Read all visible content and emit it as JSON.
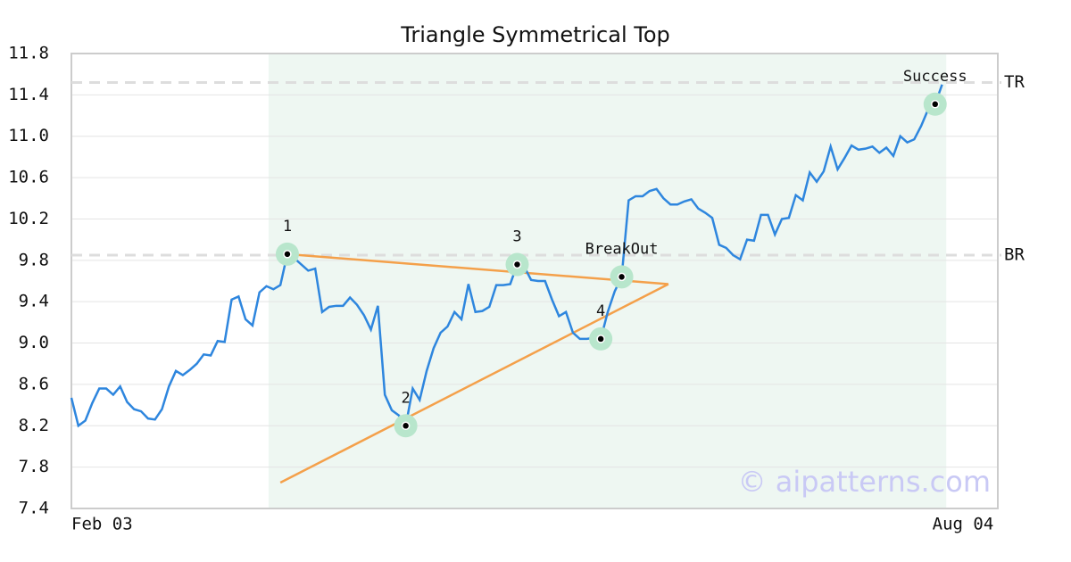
{
  "chart_data": {
    "type": "line",
    "title": "Triangle Symmetrical Top",
    "color": "#2e86de",
    "values": [
      8.47,
      8.2,
      8.25,
      8.42,
      8.56,
      8.56,
      8.5,
      8.58,
      8.43,
      8.36,
      8.34,
      8.27,
      8.26,
      8.36,
      8.58,
      8.73,
      8.69,
      8.74,
      8.8,
      8.89,
      8.88,
      9.02,
      9.01,
      9.42,
      9.45,
      9.23,
      9.17,
      9.49,
      9.55,
      9.52,
      9.56,
      9.86,
      9.82,
      9.76,
      9.7,
      9.72,
      9.3,
      9.35,
      9.36,
      9.36,
      9.44,
      9.37,
      9.27,
      9.13,
      9.36,
      8.5,
      8.35,
      8.3,
      8.2,
      8.56,
      8.45,
      8.73,
      8.95,
      9.1,
      9.16,
      9.3,
      9.23,
      9.57,
      9.3,
      9.31,
      9.35,
      9.56,
      9.56,
      9.57,
      9.76,
      9.74,
      9.61,
      9.6,
      9.6,
      9.42,
      9.26,
      9.3,
      9.1,
      9.04,
      9.04,
      9.05,
      9.04,
      9.3,
      9.5,
      9.64,
      10.38,
      10.42,
      10.42,
      10.47,
      10.49,
      10.4,
      10.34,
      10.34,
      10.37,
      10.39,
      10.3,
      10.26,
      10.21,
      9.95,
      9.92,
      9.85,
      9.81,
      10.0,
      9.99,
      10.24,
      10.24,
      10.05,
      10.2,
      10.21,
      10.43,
      10.38,
      10.65,
      10.56,
      10.66,
      10.9,
      10.68,
      10.79,
      10.91,
      10.87,
      10.88,
      10.9,
      10.84,
      10.89,
      10.81,
      11.0,
      10.94,
      10.97,
      11.1,
      11.26,
      11.31,
      11.5
    ],
    "xlim": [
      0,
      133
    ],
    "xticks": [
      {
        "value": 0,
        "label": "Feb 03"
      },
      {
        "value": 128,
        "label": "Aug 04"
      }
    ],
    "ylim": [
      7.4,
      11.8
    ],
    "yticks": [
      7.4,
      7.8,
      8.2,
      8.6,
      {
        "value": 9.0,
        "label": "9.0"
      },
      9.4,
      9.8,
      10.2,
      10.6,
      {
        "value": 11.0,
        "label": "11.0"
      },
      11.4,
      11.8
    ],
    "grid": true,
    "region": [
      28.3,
      125.6
    ],
    "levels": [
      {
        "label": "TR",
        "value": 11.52
      },
      {
        "label": "BR",
        "value": 9.85
      }
    ],
    "trend_color": "#f4a04a",
    "trend_lines": [
      {
        "x": [
          31,
          85.7
        ],
        "y": [
          9.86,
          9.57
        ]
      },
      {
        "x": [
          30,
          85.7
        ],
        "y": [
          7.65,
          9.57
        ]
      }
    ],
    "points": [
      {
        "label": "1",
        "index": 31
      },
      {
        "label": "2",
        "index": 48
      },
      {
        "label": "3",
        "index": 64
      },
      {
        "label": "4",
        "index": 76
      },
      {
        "label": "BreakOut",
        "index": 79
      },
      {
        "label": "Success",
        "index": 124
      }
    ],
    "watermark": "© aipatterns.com"
  }
}
